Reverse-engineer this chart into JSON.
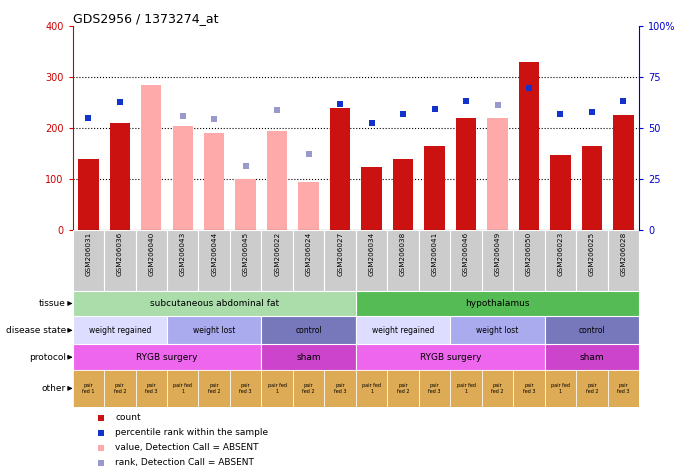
{
  "title": "GDS2956 / 1373274_at",
  "samples": [
    "GSM206031",
    "GSM206036",
    "GSM206040",
    "GSM206043",
    "GSM206044",
    "GSM206045",
    "GSM206022",
    "GSM206024",
    "GSM206027",
    "GSM206034",
    "GSM206038",
    "GSM206041",
    "GSM206046",
    "GSM206049",
    "GSM206050",
    "GSM206023",
    "GSM206025",
    "GSM206028"
  ],
  "count_present": [
    140,
    210,
    null,
    null,
    null,
    null,
    null,
    null,
    240,
    125,
    140,
    165,
    220,
    null,
    330,
    147,
    165,
    225
  ],
  "count_absent": [
    null,
    null,
    285,
    205,
    190,
    100,
    195,
    95,
    null,
    null,
    null,
    null,
    null,
    220,
    null,
    null,
    null,
    null
  ],
  "pct_present": [
    220,
    252,
    null,
    null,
    null,
    null,
    null,
    null,
    248,
    210,
    228,
    237,
    254,
    null,
    278,
    228,
    232,
    253
  ],
  "pct_absent": [
    null,
    null,
    null,
    223,
    218,
    126,
    235,
    150,
    null,
    null,
    null,
    null,
    null,
    246,
    null,
    null,
    null,
    null
  ],
  "ylim_left": [
    0,
    400
  ],
  "ylim_right": [
    0,
    100
  ],
  "yticks_left": [
    0,
    100,
    200,
    300,
    400
  ],
  "yticks_right": [
    0,
    25,
    50,
    75,
    100
  ],
  "ytick_labels_right": [
    "0",
    "25",
    "50",
    "75",
    "100%"
  ],
  "hlines": [
    100,
    200,
    300
  ],
  "bar_present_color": "#cc1111",
  "bar_absent_color": "#ffaaaa",
  "dot_present_color": "#1133cc",
  "dot_absent_color": "#9999cc",
  "tissue_groups": [
    {
      "label": "subcutaneous abdominal fat",
      "start": 0,
      "end": 9,
      "color": "#aaddaa"
    },
    {
      "label": "hypothalamus",
      "start": 9,
      "end": 18,
      "color": "#55bb55"
    }
  ],
  "disease_groups": [
    {
      "label": "weight regained",
      "start": 0,
      "end": 3,
      "color": "#ddddff"
    },
    {
      "label": "weight lost",
      "start": 3,
      "end": 6,
      "color": "#aaaaee"
    },
    {
      "label": "control",
      "start": 6,
      "end": 9,
      "color": "#7777bb"
    },
    {
      "label": "weight regained",
      "start": 9,
      "end": 12,
      "color": "#ddddff"
    },
    {
      "label": "weight lost",
      "start": 12,
      "end": 15,
      "color": "#aaaaee"
    },
    {
      "label": "control",
      "start": 15,
      "end": 18,
      "color": "#7777bb"
    }
  ],
  "protocol_groups": [
    {
      "label": "RYGB surgery",
      "start": 0,
      "end": 6,
      "color": "#ee66ee"
    },
    {
      "label": "sham",
      "start": 6,
      "end": 9,
      "color": "#cc44cc"
    },
    {
      "label": "RYGB surgery",
      "start": 9,
      "end": 15,
      "color": "#ee66ee"
    },
    {
      "label": "sham",
      "start": 15,
      "end": 18,
      "color": "#cc44cc"
    }
  ],
  "other_labels": [
    "pair\nfed 1",
    "pair\nfed 2",
    "pair\nfed 3",
    "pair fed\n1",
    "pair\nfed 2",
    "pair\nfed 3",
    "pair fed\n1",
    "pair\nfed 2",
    "pair\nfed 3",
    "pair fed\n1",
    "pair\nfed 2",
    "pair\nfed 3",
    "pair fed\n1",
    "pair\nfed 2",
    "pair\nfed 3",
    "pair fed\n1",
    "pair\nfed 2",
    "pair\nfed 3"
  ],
  "other_color": "#ddaa55",
  "xtick_bg_color": "#cccccc",
  "row_label_fontsize": 6.5,
  "legend": [
    {
      "color": "#cc1111",
      "label": "count"
    },
    {
      "color": "#1133cc",
      "label": "percentile rank within the sample"
    },
    {
      "color": "#ffaaaa",
      "label": "value, Detection Call = ABSENT"
    },
    {
      "color": "#9999cc",
      "label": "rank, Detection Call = ABSENT"
    }
  ]
}
